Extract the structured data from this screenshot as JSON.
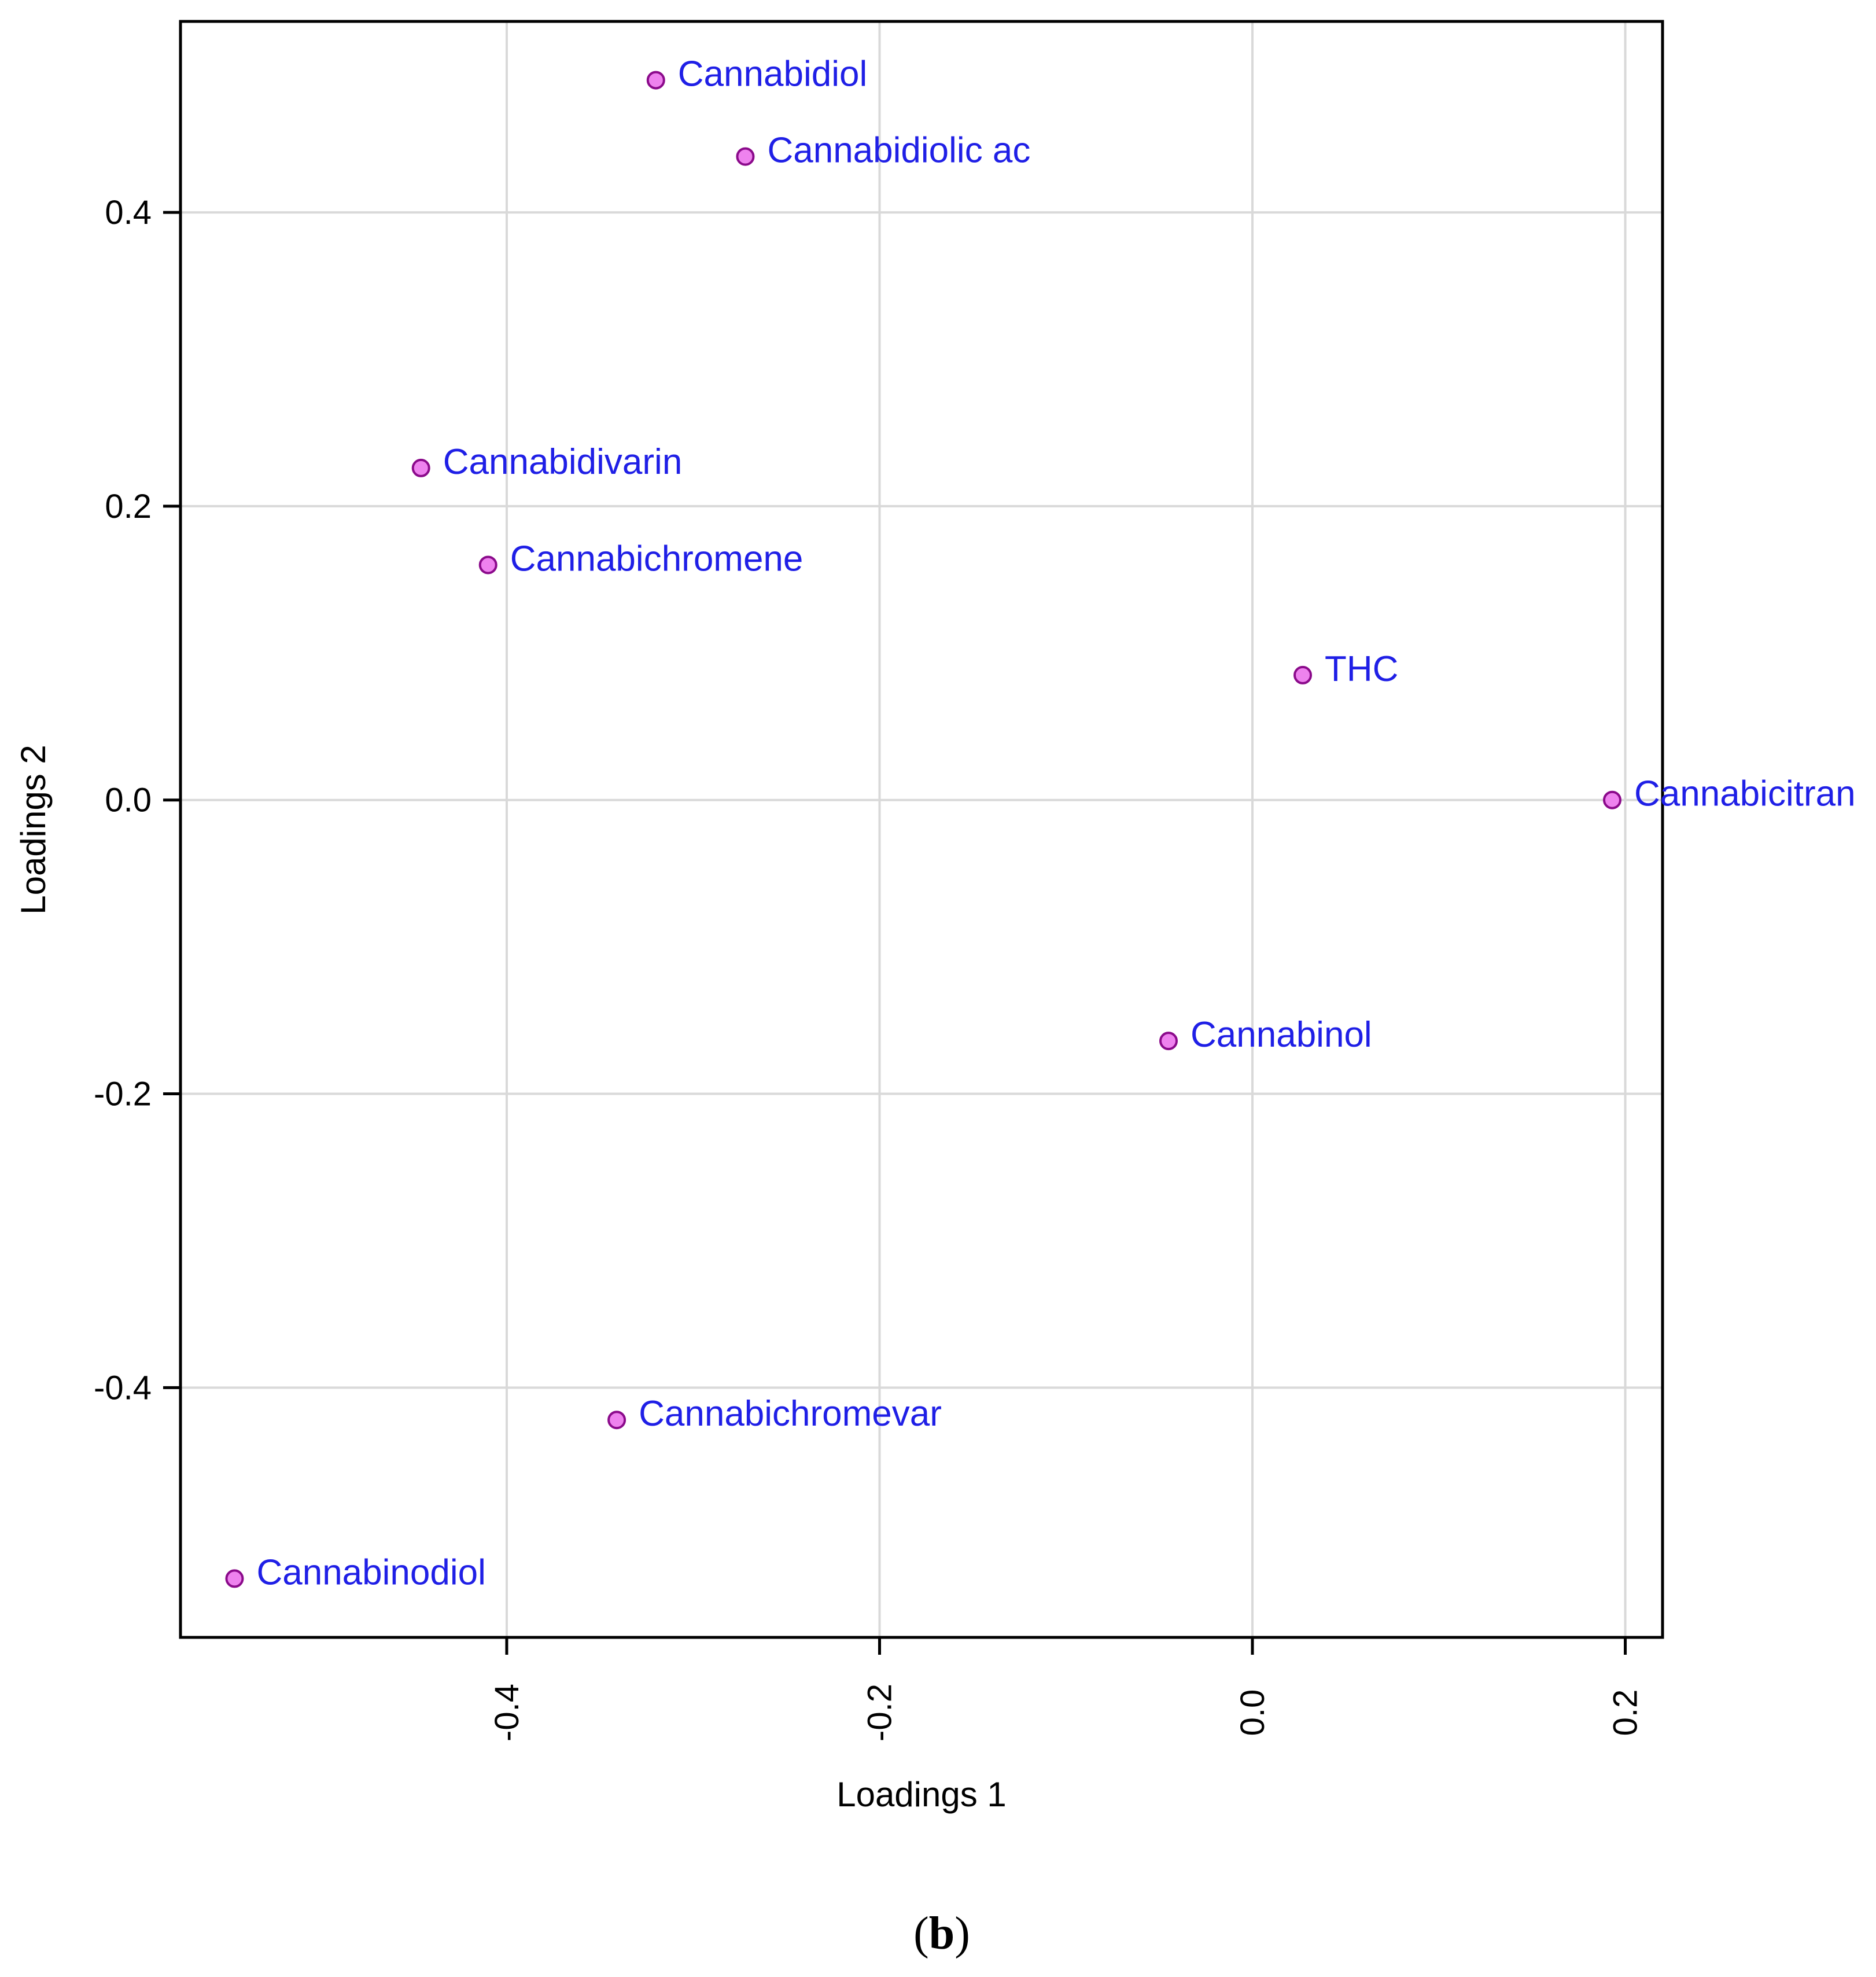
{
  "chart_data": {
    "type": "scatter",
    "title": "",
    "xlabel": "Loadings 1",
    "ylabel": "Loadings 2",
    "xlim": [
      -0.575,
      0.22
    ],
    "ylim": [
      -0.57,
      0.53
    ],
    "xticks": [
      -0.4,
      -0.2,
      0.0,
      0.2
    ],
    "xtick_labels": [
      "-0.4",
      "-0.2",
      "0.0",
      "0.2"
    ],
    "yticks": [
      -0.4,
      -0.2,
      0.0,
      0.2,
      0.4
    ],
    "ytick_labels": [
      "-0.4",
      "-0.2",
      "0.0",
      "0.2",
      "0.4"
    ],
    "grid": true,
    "colors": {
      "point_fill": "#ee82ee",
      "point_stroke": "#8b0a8b",
      "label": "#1f1fe6",
      "grid": "#d9d9d9",
      "axis": "#000000"
    },
    "points": [
      {
        "label": "Cannabidiol",
        "x": -0.32,
        "y": 0.49
      },
      {
        "label": "Cannabidiolic ac",
        "x": -0.272,
        "y": 0.438
      },
      {
        "label": "Cannabidivarin",
        "x": -0.446,
        "y": 0.226
      },
      {
        "label": "Cannabichromene",
        "x": -0.41,
        "y": 0.16
      },
      {
        "label": "THC",
        "x": 0.027,
        "y": 0.085
      },
      {
        "label": "Cannabicitran",
        "x": 0.193,
        "y": 0.0
      },
      {
        "label": "Cannabinol",
        "x": -0.045,
        "y": -0.164
      },
      {
        "label": "Cannabichromevar",
        "x": -0.341,
        "y": -0.422
      },
      {
        "label": "Cannabinodiol",
        "x": -0.546,
        "y": -0.53
      }
    ]
  },
  "caption": {
    "open": "(",
    "letter": "b",
    "close": ")"
  }
}
